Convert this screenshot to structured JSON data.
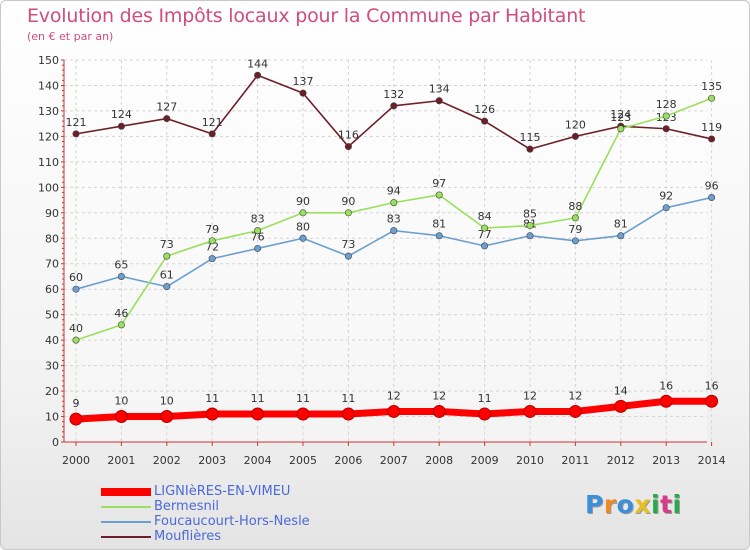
{
  "title": "Evolution des Impôts locaux pour la Commune par Habitant",
  "subtitle": "(en € et par an)",
  "logo": "Proxiti",
  "chart_data": {
    "type": "line",
    "title": "Evolution des Impôts locaux pour la Commune par Habitant",
    "subtitle": "(en € et par an)",
    "xlabel": "",
    "ylabel": "",
    "ylim": [
      0,
      150
    ],
    "ytick_step": 10,
    "grid": true,
    "legend": "bottom-left",
    "x": [
      "2000",
      "2001",
      "2002",
      "2003",
      "2004",
      "2005",
      "2006",
      "2007",
      "2008",
      "2009",
      "2010",
      "2011",
      "2012",
      "2013",
      "2014"
    ],
    "series": [
      {
        "name": "Mouflières",
        "color": "#6e1e28",
        "values": [
          121,
          124,
          127,
          121,
          144,
          137,
          116,
          132,
          134,
          126,
          115,
          120,
          124,
          123,
          119
        ]
      },
      {
        "name": "Foucaucourt-Hors-Nesle",
        "color": "#6a9fd0",
        "values": [
          60,
          65,
          61,
          72,
          76,
          80,
          73,
          83,
          81,
          77,
          81,
          79,
          81,
          92,
          96
        ]
      },
      {
        "name": "Bermesnil",
        "color": "#99e05c",
        "values": [
          40,
          46,
          73,
          79,
          83,
          90,
          90,
          94,
          97,
          84,
          85,
          88,
          123,
          128,
          135
        ]
      },
      {
        "name": "LIGNIèRES-EN-VIMEU",
        "color": "#ff0000",
        "values": [
          9,
          10,
          10,
          11,
          11,
          11,
          11,
          12,
          12,
          11,
          12,
          12,
          14,
          16,
          16
        ]
      }
    ]
  }
}
